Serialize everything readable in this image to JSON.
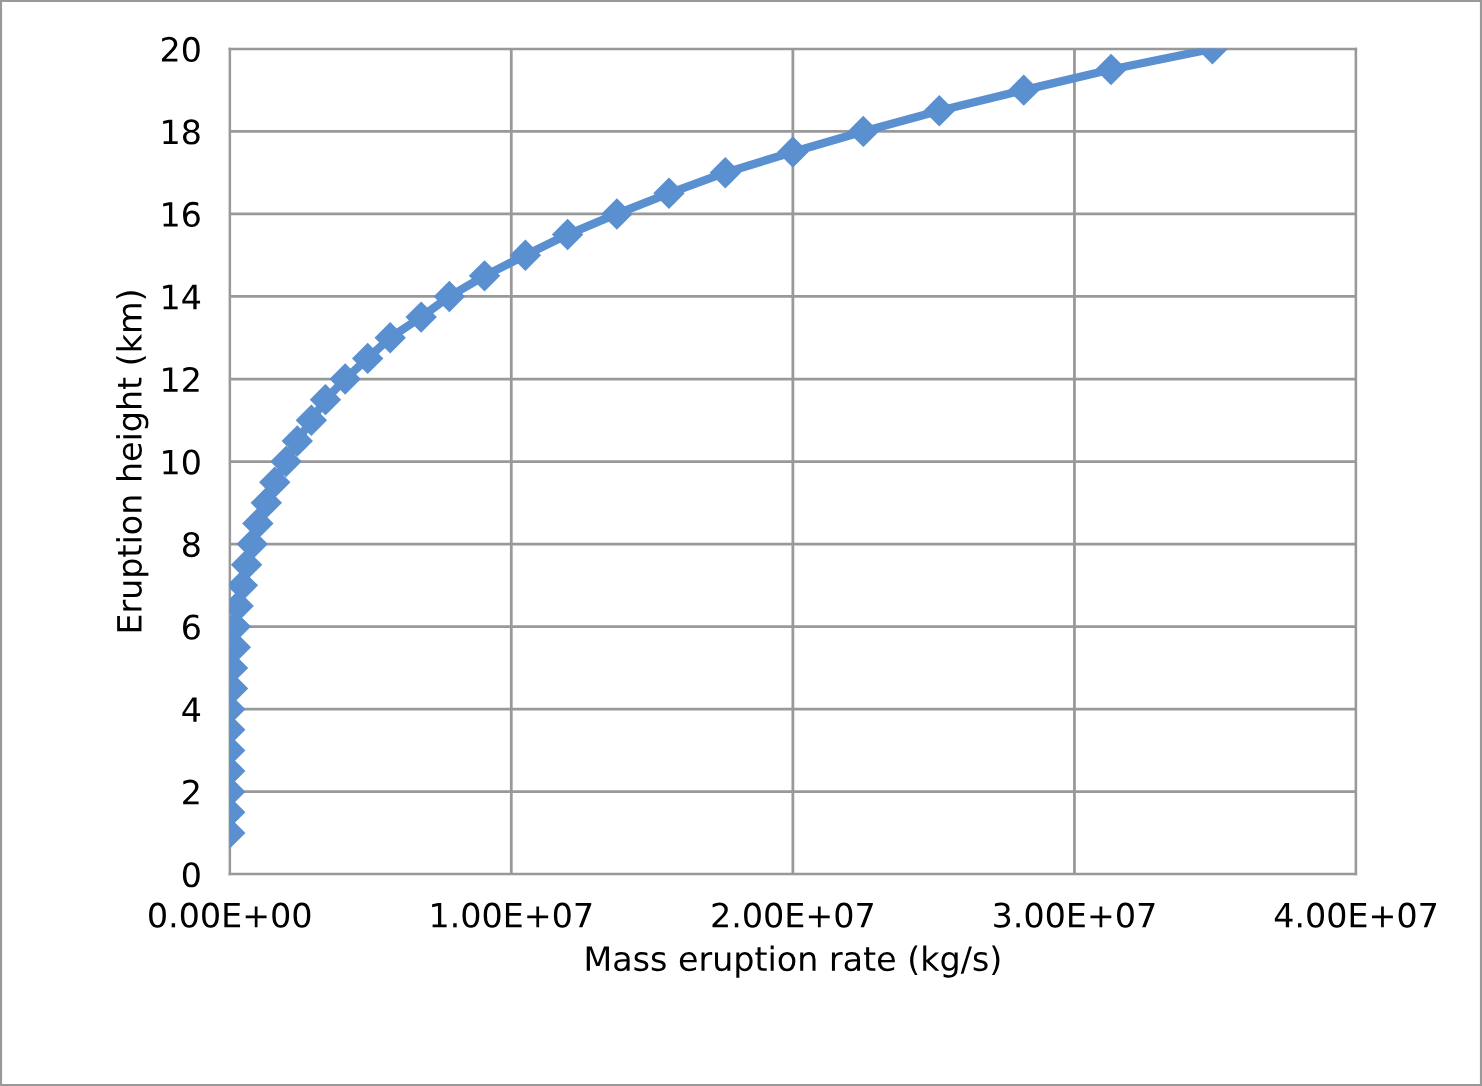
{
  "chart_data": {
    "type": "line",
    "xlabel": "Mass eruption rate (kg/s)",
    "ylabel": "Eruption height (km)",
    "series": [
      {
        "color": "#5a8fd0",
        "x": [
          0,
          0,
          0,
          0,
          0,
          0,
          0,
          100000,
          100000,
          200000,
          200000,
          300000,
          450000,
          600000,
          800000,
          1000000,
          1300000,
          1600000,
          2000000,
          2400000,
          2900000,
          3400000,
          4100000,
          4900000,
          5700000,
          6800000,
          7800000,
          9050000,
          10500000,
          12000000,
          13750000,
          15600000,
          17600000,
          20000000,
          22500000,
          25200000,
          28200000,
          31300000,
          34900000
        ],
        "values": [
          1,
          1.5,
          2,
          2.5,
          3,
          3.5,
          4,
          4.5,
          5,
          5.5,
          6,
          6.5,
          7,
          7.5,
          8,
          8.5,
          9,
          9.5,
          10,
          10.5,
          11,
          11.5,
          12,
          12.5,
          13,
          13.5,
          14,
          14.5,
          15,
          15.5,
          16,
          16.5,
          17,
          17.5,
          18,
          18.5,
          19,
          19.5,
          20
        ]
      }
    ],
    "xlim": [
      0,
      40000000
    ],
    "xticks": [
      {
        "value": 0,
        "label": "0.00E+00"
      },
      {
        "value": 10000000,
        "label": "1.00E+07"
      },
      {
        "value": 20000000,
        "label": "2.00E+07"
      },
      {
        "value": 30000000,
        "label": "3.00E+07"
      },
      {
        "value": 40000000,
        "label": "4.00E+07"
      }
    ],
    "ylim": [
      0,
      20
    ],
    "yticks": [
      0,
      2,
      4,
      6,
      8,
      10,
      12,
      14,
      16,
      18,
      20
    ],
    "grid": true,
    "marker": "diamond",
    "line_style": "solid"
  }
}
